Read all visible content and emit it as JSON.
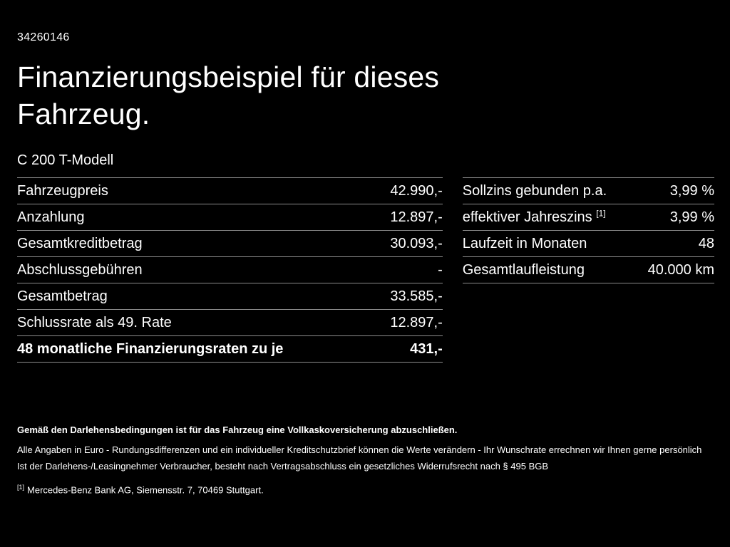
{
  "page": {
    "id_number": "34260146",
    "title": "Finanzierungsbeispiel für dieses Fahrzeug.",
    "model": "C 200 T-Modell"
  },
  "left_table": {
    "rows": [
      {
        "label": "Fahrzeugpreis",
        "value": "42.990,-"
      },
      {
        "label": "Anzahlung",
        "value": "12.897,-"
      },
      {
        "label": "Gesamtkreditbetrag",
        "value": "30.093,-"
      },
      {
        "label": "Abschlussgebühren",
        "value": "-"
      },
      {
        "label": "Gesamtbetrag",
        "value": "33.585,-"
      },
      {
        "label": "Schlussrate als 49. Rate",
        "value": "12.897,-"
      },
      {
        "label": "48 monatliche Finanzierungsraten zu je",
        "value": "431,-"
      }
    ]
  },
  "right_table": {
    "rows": [
      {
        "label": "Sollzins gebunden p.a.",
        "value": "3,99 %"
      },
      {
        "label": "effektiver Jahreszins",
        "label_sup": "[1]",
        "value": "3,99 %"
      },
      {
        "label": "Laufzeit in Monaten",
        "value": "48"
      },
      {
        "label": "Gesamtlaufleistung",
        "value": "40.000 km"
      }
    ]
  },
  "footer": {
    "line1": "Gemäß den Darlehensbedingungen ist für das Fahrzeug eine Vollkaskoversicherung abzuschließen.",
    "line2": "Alle Angaben in Euro - Rundungsdifferenzen und ein individueller Kreditschutzbrief können die Werte verändern - Ihr Wunschrate errechnen wir Ihnen gerne persönlich",
    "line3": "Ist der Darlehens-/Leasingnehmer Verbraucher, besteht nach Vertragsabschluss ein gesetzliches Widerrufsrecht nach § 495 BGB",
    "footnote_marker": "[1]",
    "footnote_text": "Mercedes-Benz Bank AG, Siemensstr. 7, 70469 Stuttgart."
  },
  "colors": {
    "background": "#000000",
    "text": "#ffffff",
    "divider": "#8c8c8c"
  }
}
